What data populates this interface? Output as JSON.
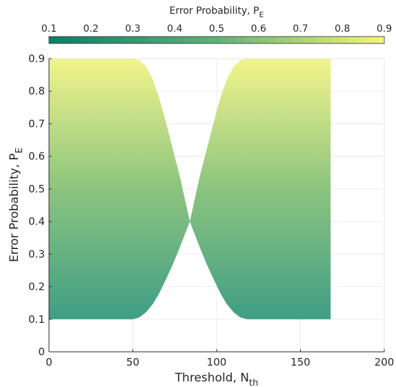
{
  "chart_data": {
    "type": "area",
    "xlabel": {
      "text": "Threshold, N",
      "subscript": "th"
    },
    "ylabel": {
      "text": "Error Probability, P",
      "subscript": "E"
    },
    "xlim": [
      0,
      200
    ],
    "ylim": [
      0,
      0.9
    ],
    "xticks": [
      0,
      50,
      100,
      150,
      200
    ],
    "xtick_labels": [
      "0",
      "50",
      "100",
      "150",
      "200"
    ],
    "yticks": [
      0,
      0.1,
      0.2,
      0.3,
      0.4,
      0.5,
      0.6,
      0.7,
      0.8,
      0.9
    ],
    "ytick_labels": [
      "0",
      "0.1",
      "0.2",
      "0.3",
      "0.4",
      "0.5",
      "0.6",
      "0.7",
      "0.8",
      "0.9"
    ],
    "grid": true,
    "colorbar": {
      "location": "top",
      "label": {
        "text": "Error Probability, P",
        "subscript": "E"
      },
      "range": [
        0.1,
        0.9
      ],
      "ticks": [
        0.1,
        0.2,
        0.3,
        0.4,
        0.5,
        0.6,
        0.7,
        0.8,
        0.9
      ],
      "tick_labels": [
        "0.1",
        "0.2",
        "0.3",
        "0.4",
        "0.5",
        "0.6",
        "0.7",
        "0.8",
        "0.9"
      ],
      "colormap": [
        "#0b7f66",
        "#5fb178",
        "#f5f576"
      ]
    },
    "region": {
      "x_start": 0,
      "x_end": 168,
      "crossing": {
        "x": 84,
        "y": 0.4
      },
      "upper_boundary": [
        [
          0,
          0.9
        ],
        [
          50,
          0.9
        ],
        [
          54,
          0.895
        ],
        [
          58,
          0.875
        ],
        [
          62,
          0.835
        ],
        [
          66,
          0.775
        ],
        [
          70,
          0.7
        ],
        [
          74,
          0.62
        ],
        [
          78,
          0.54
        ],
        [
          81,
          0.47
        ],
        [
          84,
          0.4
        ],
        [
          87,
          0.47
        ],
        [
          90,
          0.54
        ],
        [
          94,
          0.62
        ],
        [
          98,
          0.7
        ],
        [
          102,
          0.775
        ],
        [
          106,
          0.835
        ],
        [
          110,
          0.875
        ],
        [
          114,
          0.895
        ],
        [
          118,
          0.9
        ],
        [
          168,
          0.9
        ]
      ],
      "lower_boundary": [
        [
          0,
          0.1
        ],
        [
          50,
          0.1
        ],
        [
          54,
          0.106
        ],
        [
          58,
          0.122
        ],
        [
          62,
          0.147
        ],
        [
          66,
          0.182
        ],
        [
          70,
          0.225
        ],
        [
          74,
          0.27
        ],
        [
          78,
          0.32
        ],
        [
          81,
          0.36
        ],
        [
          84,
          0.4
        ],
        [
          87,
          0.36
        ],
        [
          90,
          0.32
        ],
        [
          94,
          0.27
        ],
        [
          98,
          0.225
        ],
        [
          102,
          0.182
        ],
        [
          106,
          0.147
        ],
        [
          110,
          0.122
        ],
        [
          114,
          0.106
        ],
        [
          118,
          0.1
        ],
        [
          168,
          0.1
        ]
      ]
    }
  }
}
